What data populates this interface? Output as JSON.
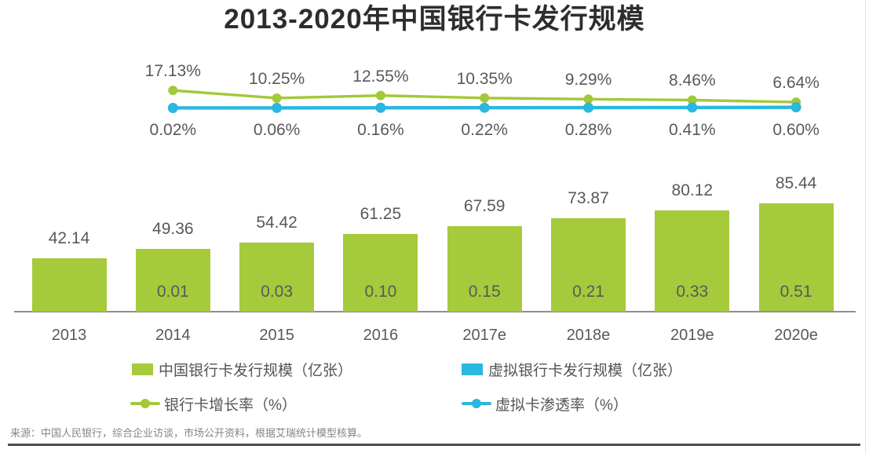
{
  "title": "2013-2020年中国银行卡发行规模",
  "source": "来源：中国人民银行，综合企业访谈，市场公开资料，根据艾瑞统计模型核算。",
  "colors": {
    "bar_green": "#a5ca3b",
    "line_green": "#a3c838",
    "blue": "#2ab7e0",
    "label_gray": "#595959",
    "axis_gray": "#8f8f8f",
    "title_dark": "#2d2d2d",
    "source_gray": "#858585"
  },
  "chart_data": {
    "type": "bar+line combo",
    "categories": [
      "2013",
      "2014",
      "2015",
      "2016",
      "2017e",
      "2018e",
      "2019e",
      "2020e"
    ],
    "series": [
      {
        "name": "中国银行卡发行规模（亿张）",
        "type": "bar",
        "color": "#a5ca3b",
        "unit": "亿张",
        "values": [
          42.14,
          49.36,
          54.42,
          61.25,
          67.59,
          73.87,
          80.12,
          85.44
        ]
      },
      {
        "name": "虚拟银行卡发行规模（亿张）",
        "type": "bar",
        "color": "#2ab7e0",
        "unit": "亿张",
        "values": [
          null,
          0.01,
          0.03,
          0.1,
          0.15,
          0.21,
          0.33,
          0.51
        ]
      },
      {
        "name": "银行卡增长率（%）",
        "type": "line",
        "color": "#a3c838",
        "unit": "%",
        "values": [
          null,
          17.13,
          10.25,
          12.55,
          10.35,
          9.29,
          8.46,
          6.64
        ]
      },
      {
        "name": "虚拟卡渗透率（%）",
        "type": "line",
        "color": "#2ab7e0",
        "unit": "%",
        "values": [
          null,
          0.02,
          0.06,
          0.16,
          0.22,
          0.28,
          0.41,
          0.6
        ]
      }
    ],
    "grid": false,
    "legend_position": "bottom",
    "ylim_bars": [
      0,
      90
    ]
  },
  "legend": {
    "items": [
      {
        "label": "中国银行卡发行规模（亿张）",
        "marker": "square",
        "color": "#a5ca3b"
      },
      {
        "label": "虚拟银行卡发行规模（亿张）",
        "marker": "square",
        "color": "#2ab7e0"
      },
      {
        "label": "银行卡增长率（%）",
        "marker": "line-dot",
        "color": "#a3c838"
      },
      {
        "label": "虚拟卡渗透率（%）",
        "marker": "line-dot",
        "color": "#2ab7e0"
      }
    ]
  }
}
